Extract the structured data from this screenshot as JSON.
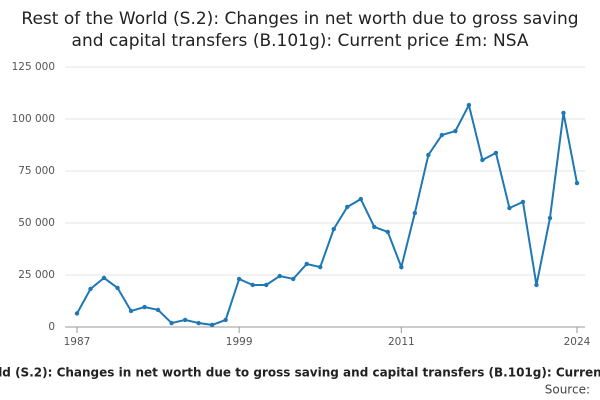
{
  "chart_data": {
    "type": "line",
    "title": "Rest of the World (S.2): Changes in net worth due to gross saving and capital transfers (B.101g): Current price £m: NSA",
    "source": "Source:",
    "x": [
      1987,
      1988,
      1989,
      1990,
      1991,
      1992,
      1993,
      1994,
      1995,
      1996,
      1997,
      1998,
      1999,
      2000,
      2001,
      2002,
      2003,
      2004,
      2005,
      2006,
      2007,
      2008,
      2009,
      2010,
      2011,
      2012,
      2013,
      2014,
      2015,
      2016,
      2017,
      2018,
      2019,
      2020,
      2021,
      2022,
      2023,
      2024
    ],
    "series": [
      {
        "color": "#1f78b4",
        "values": [
          6500,
          18300,
          23600,
          18800,
          7700,
          9600,
          8200,
          1900,
          3400,
          1900,
          1000,
          3400,
          23100,
          20200,
          20200,
          24500,
          23100,
          30300,
          28800,
          47100,
          57700,
          61500,
          48100,
          45700,
          28800,
          54800,
          82700,
          92300,
          94200,
          106700,
          80300,
          83700,
          57200,
          60100,
          20200,
          52400,
          102900,
          69200
        ]
      }
    ],
    "xlim": [
      1987,
      2024
    ],
    "xticks": [
      1987,
      1999,
      2011,
      2024
    ],
    "ylim": [
      0,
      125000
    ],
    "yticks": [
      0,
      {
        "value": 25000,
        "label": "25 000"
      },
      {
        "value": 50000,
        "label": "50 000"
      },
      {
        "value": 75000,
        "label": "75 000"
      },
      {
        "value": 100000,
        "label": "100 000"
      },
      {
        "value": 125000,
        "label": "125 000"
      }
    ],
    "grid": true
  }
}
